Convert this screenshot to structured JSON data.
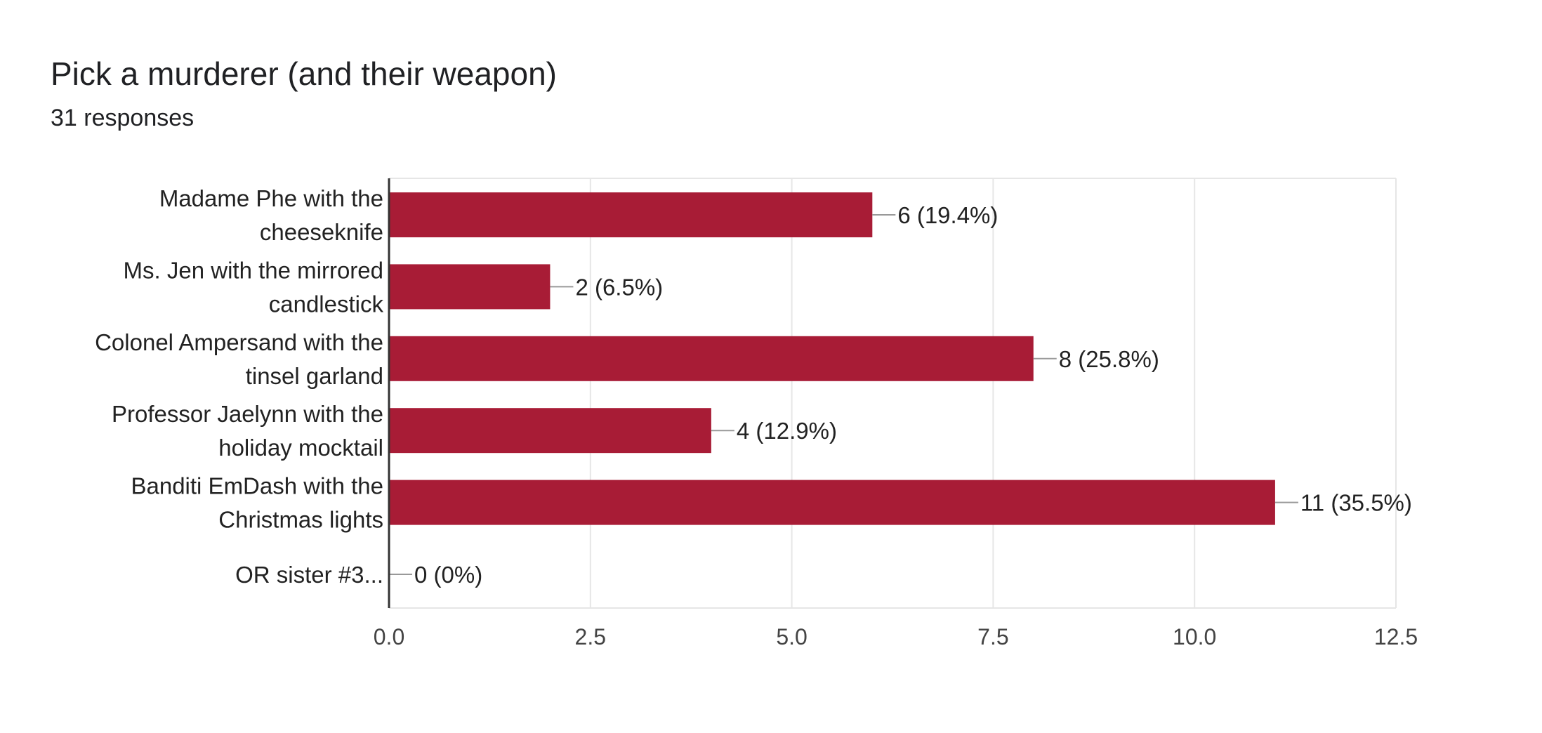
{
  "card": {
    "title": "Pick a murderer (and their weapon)",
    "responses": "31 responses"
  },
  "chart_data": {
    "type": "bar",
    "orientation": "horizontal",
    "title": "Pick a murderer (and their weapon)",
    "xlabel": "",
    "ylabel": "",
    "xlim": [
      0,
      12.5
    ],
    "xticks": [
      0.0,
      2.5,
      5.0,
      7.5,
      10.0,
      12.5
    ],
    "xtick_labels": [
      "0.0",
      "2.5",
      "5.0",
      "7.5",
      "10.0",
      "12.5"
    ],
    "grid": true,
    "bar_color": "#a81c36",
    "categories": [
      [
        "Madame Phe with the",
        "cheeseknife"
      ],
      [
        "Ms. Jen with the mirrored",
        "candlestick"
      ],
      [
        "Colonel Ampersand with the",
        "tinsel garland"
      ],
      [
        "Professor Jaelynn with the",
        "holiday mocktail"
      ],
      [
        "Banditi EmDash with the",
        "Christmas lights"
      ],
      [
        "OR sister #3..."
      ]
    ],
    "values": [
      6,
      2,
      8,
      4,
      11,
      0
    ],
    "data_labels": [
      "6 (19.4%)",
      "2 (6.5%)",
      "8 (25.8%)",
      "4 (12.9%)",
      "11 (35.5%)",
      "0 (0%)"
    ]
  }
}
